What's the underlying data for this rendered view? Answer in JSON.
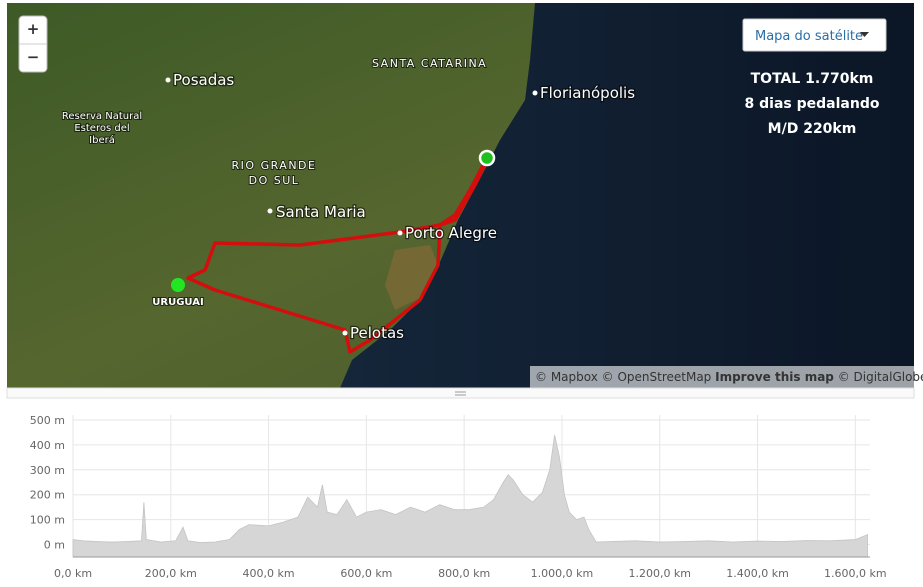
{
  "map": {
    "labels": {
      "posadas": "Posadas",
      "santa_catarina": "SANTA CATARINA",
      "florianopolis": "Florianópolis",
      "reserva": [
        "Reserva Natural",
        "Esteros del",
        "Iberá"
      ],
      "rio_grande": [
        "RIO GRANDE",
        "DO SUL"
      ],
      "santa_maria": "Santa Maria",
      "porto_alegre": "Porto Alegre",
      "pelotas": "Pelotas",
      "uruguai": "URUGUAI"
    },
    "zoom_in": "+",
    "zoom_out": "−",
    "style_button": "Mapa do satélite",
    "stats": [
      "TOTAL  1.770km",
      "8 dias pedalando",
      "M/D 220km"
    ],
    "attribution": {
      "credits": "© Mapbox © OpenStreetMap",
      "improve": "Improve this map",
      "imagery": "© DigitalGlobe"
    }
  },
  "chart_data": {
    "type": "area",
    "color": "#d6d6d6",
    "grid": true,
    "x": [
      0,
      20,
      50,
      80,
      110,
      140,
      145,
      150,
      180,
      210,
      225,
      235,
      260,
      290,
      320,
      340,
      360,
      400,
      430,
      460,
      480,
      500,
      510,
      520,
      540,
      560,
      580,
      600,
      630,
      660,
      690,
      720,
      750,
      780,
      810,
      840,
      860,
      880,
      890,
      900,
      920,
      940,
      960,
      975,
      985,
      995,
      1005,
      1015,
      1030,
      1045,
      1055,
      1070,
      1100,
      1150,
      1200,
      1250,
      1300,
      1350,
      1400,
      1450,
      1500,
      1550,
      1600,
      1625
    ],
    "values": [
      20,
      15,
      12,
      10,
      12,
      15,
      170,
      20,
      10,
      15,
      70,
      15,
      8,
      10,
      20,
      60,
      80,
      75,
      90,
      110,
      190,
      150,
      240,
      130,
      120,
      180,
      110,
      130,
      140,
      120,
      150,
      130,
      160,
      140,
      140,
      150,
      180,
      250,
      280,
      260,
      200,
      170,
      210,
      300,
      440,
      350,
      200,
      130,
      100,
      110,
      60,
      10,
      12,
      15,
      10,
      12,
      15,
      10,
      14,
      12,
      16,
      15,
      20,
      40
    ],
    "xlim": [
      0,
      1630
    ],
    "ylim": [
      -50,
      520
    ],
    "xticks": [
      {
        "value": 0,
        "label": "0,0 km"
      },
      {
        "value": 200,
        "label": "200,0 km"
      },
      {
        "value": 400,
        "label": "400,0 km"
      },
      {
        "value": 600,
        "label": "600,0 km"
      },
      {
        "value": 800,
        "label": "800,0 km"
      },
      {
        "value": 1000,
        "label": "1.000,0 km"
      },
      {
        "value": 1200,
        "label": "1.200,0 km"
      },
      {
        "value": 1400,
        "label": "1.400,0 km"
      },
      {
        "value": 1600,
        "label": "1.600,0 km"
      }
    ],
    "yticks": [
      {
        "value": 0,
        "label": "0 m"
      },
      {
        "value": 100,
        "label": "100 m"
      },
      {
        "value": 200,
        "label": "200 m"
      },
      {
        "value": 300,
        "label": "300 m"
      },
      {
        "value": 400,
        "label": "400 m"
      },
      {
        "value": 500,
        "label": "500 m"
      }
    ]
  }
}
